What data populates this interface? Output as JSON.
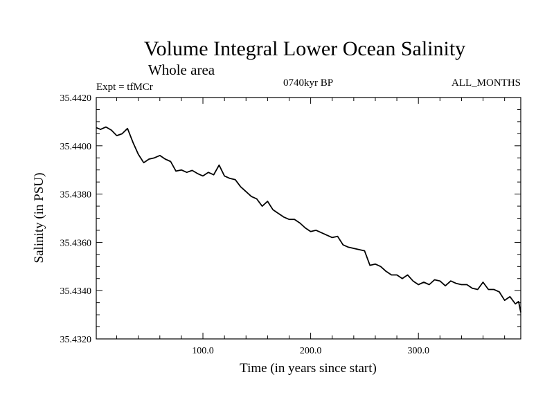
{
  "chart_data": {
    "type": "line",
    "title": "Volume Integral Lower Ocean Salinity",
    "subtitle": "Whole area",
    "left_label": "Expt = tfMCr",
    "center_label": "0740kyr BP",
    "right_label": "ALL_MONTHS",
    "xlabel": "Time (in years since start)",
    "ylabel": "Salinity (in PSU)",
    "xlim": [
      1,
      395
    ],
    "ylim": [
      35.432,
      35.442
    ],
    "x_ticks": [
      100,
      200,
      300
    ],
    "x_tick_labels": [
      "100.0",
      "200.0",
      "300.0"
    ],
    "y_ticks": [
      35.432,
      35.434,
      35.436,
      35.438,
      35.44,
      35.442
    ],
    "y_tick_labels": [
      "35.4320",
      "35.4340",
      "35.4360",
      "35.4380",
      "35.4400",
      "35.4420"
    ],
    "line_color": "#000000",
    "grid": false,
    "series": [
      {
        "x": [
          1,
          5,
          10,
          15,
          20,
          25,
          30,
          35,
          40,
          45,
          50,
          55,
          60,
          65,
          70,
          75,
          80,
          85,
          90,
          95,
          100,
          105,
          110,
          115,
          120,
          125,
          130,
          135,
          140,
          145,
          150,
          155,
          160,
          165,
          170,
          175,
          180,
          185,
          190,
          195,
          200,
          205,
          210,
          215,
          220,
          225,
          230,
          235,
          240,
          245,
          250,
          255,
          260,
          265,
          270,
          275,
          280,
          285,
          290,
          295,
          300,
          305,
          310,
          315,
          320,
          325,
          330,
          335,
          340,
          345,
          350,
          355,
          360,
          365,
          370,
          375,
          380,
          385,
          390,
          393,
          395
        ],
        "y": [
          35.44075,
          35.44068,
          35.44078,
          35.44065,
          35.44042,
          35.4405,
          35.44072,
          35.44015,
          35.43965,
          35.4393,
          35.43945,
          35.4395,
          35.4396,
          35.43945,
          35.43935,
          35.43895,
          35.439,
          35.4389,
          35.43898,
          35.43885,
          35.43875,
          35.4389,
          35.4388,
          35.4392,
          35.43875,
          35.43865,
          35.4386,
          35.4383,
          35.4381,
          35.4379,
          35.4378,
          35.4375,
          35.4377,
          35.43735,
          35.4372,
          35.43705,
          35.43695,
          35.43695,
          35.4368,
          35.4366,
          35.43645,
          35.4365,
          35.4364,
          35.4363,
          35.4362,
          35.43625,
          35.4359,
          35.4358,
          35.43575,
          35.4357,
          35.43565,
          35.43505,
          35.4351,
          35.435,
          35.4348,
          35.43465,
          35.43465,
          35.4345,
          35.43465,
          35.4344,
          35.43425,
          35.43435,
          35.43425,
          35.43445,
          35.4344,
          35.4342,
          35.4344,
          35.4343,
          35.43425,
          35.43425,
          35.4341,
          35.43405,
          35.43435,
          35.43405,
          35.43405,
          35.43395,
          35.4336,
          35.43375,
          35.43345,
          35.43355,
          35.4331
        ]
      }
    ]
  }
}
